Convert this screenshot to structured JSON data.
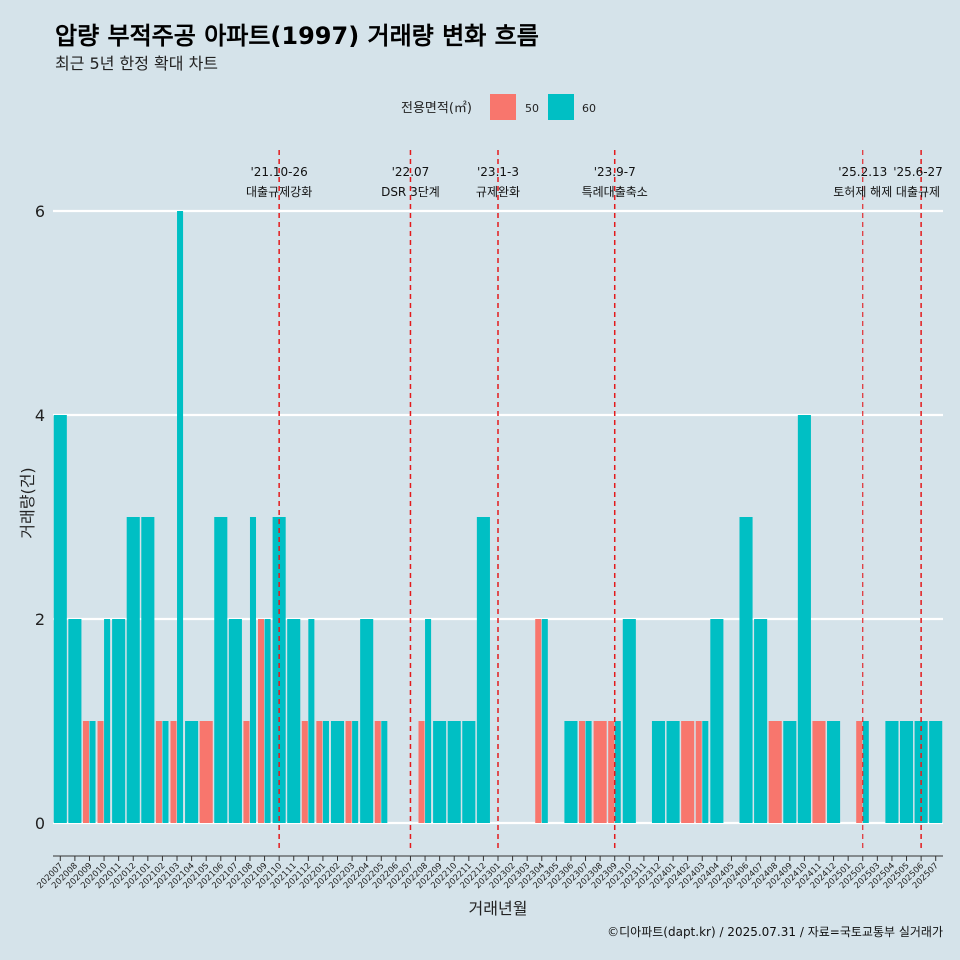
{
  "colors": {
    "background": "#d5e3ea",
    "area_50": "#f8766d",
    "area_60": "#00bfc4",
    "gridline": "#ffffff",
    "event_line": "#e31a1c"
  },
  "chart_data": {
    "type": "bar",
    "stacked": false,
    "position": "dodge",
    "title": "압량 부적주공 아파트(1997) 거래량 변화 흐름",
    "subtitle": "최근 5년 한정 확대 차트",
    "xlabel": "거래년월",
    "ylabel": "거래량(건)",
    "ylim": [
      0,
      6.3
    ],
    "yticks": [
      0,
      2,
      4,
      6
    ],
    "legend": {
      "title": "전용면적(㎡)",
      "position": "top",
      "entries": [
        {
          "name": "50",
          "color_key": "area_50"
        },
        {
          "name": "60",
          "color_key": "area_60"
        }
      ]
    },
    "categories": [
      "202007",
      "202008",
      "202009",
      "202010",
      "202011",
      "202012",
      "202101",
      "202102",
      "202103",
      "202104",
      "202105",
      "202106",
      "202107",
      "202108",
      "202109",
      "202110",
      "202111",
      "202112",
      "202201",
      "202202",
      "202203",
      "202204",
      "202205",
      "202206",
      "202207",
      "202208",
      "202209",
      "202210",
      "202211",
      "202212",
      "202301",
      "202302",
      "202303",
      "202304",
      "202305",
      "202306",
      "202307",
      "202308",
      "202309",
      "202310",
      "202311",
      "202312",
      "202401",
      "202402",
      "202403",
      "202404",
      "202405",
      "202406",
      "202407",
      "202408",
      "202409",
      "202410",
      "202411",
      "202412",
      "202501",
      "202502",
      "202503",
      "202504",
      "202505",
      "202506",
      "202507"
    ],
    "series": [
      {
        "name": "50",
        "color_key": "area_50",
        "values": [
          0,
          0,
          1,
          1,
          0,
          0,
          0,
          1,
          1,
          0,
          1,
          0,
          0,
          1,
          2,
          0,
          0,
          1,
          1,
          0,
          1,
          0,
          1,
          0,
          0,
          1,
          0,
          0,
          0,
          0,
          0,
          0,
          0,
          2,
          0,
          0,
          1,
          1,
          1,
          0,
          0,
          0,
          0,
          1,
          1,
          0,
          0,
          0,
          0,
          1,
          0,
          0,
          1,
          0,
          0,
          1,
          0,
          0,
          0,
          0,
          0
        ]
      },
      {
        "name": "60",
        "color_key": "area_60",
        "values": [
          4,
          2,
          1,
          2,
          2,
          3,
          3,
          1,
          6,
          1,
          0,
          3,
          2,
          3,
          2,
          3,
          2,
          2,
          1,
          1,
          1,
          2,
          1,
          0,
          0,
          2,
          1,
          1,
          1,
          3,
          0,
          0,
          0,
          2,
          0,
          1,
          1,
          0,
          1,
          2,
          0,
          1,
          1,
          0,
          1,
          2,
          0,
          3,
          2,
          0,
          1,
          4,
          0,
          1,
          0,
          1,
          0,
          1,
          1,
          1,
          1
        ]
      }
    ],
    "events": [
      {
        "date": "'21.10-26",
        "label": "대출규제강화",
        "at": "202110"
      },
      {
        "date": "'22.07",
        "label": "DSR 3단계",
        "at": "202207"
      },
      {
        "date": "'23.1-3",
        "label": "규제완화",
        "at": "202301"
      },
      {
        "date": "'23.9-7",
        "label": "특례대출축소",
        "at": "202309"
      },
      {
        "date": "'25.2.13",
        "label": "토허제 해제",
        "at": "202502"
      },
      {
        "date": "'25.6-27",
        "label": "대출규제",
        "at": "202506"
      }
    ],
    "caption": "©디아파트(dapt.kr) / 2025.07.31 / 자료=국토교통부 실거래가"
  }
}
